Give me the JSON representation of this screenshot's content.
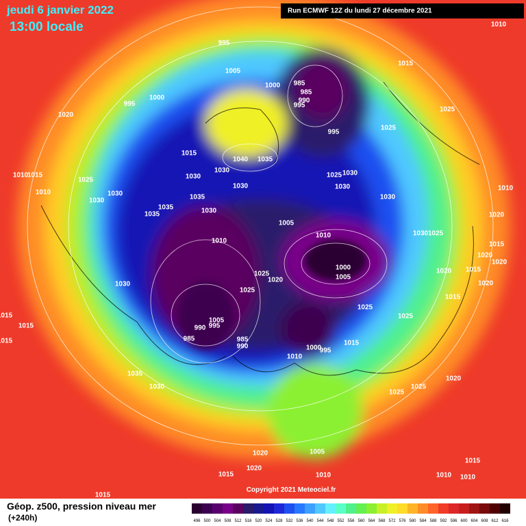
{
  "header": {
    "date": "jeudi 6 janvier 2022",
    "time": "13:00 locale",
    "run": "Run ECMWF 12Z du lundi 27 décembre 2021"
  },
  "map": {
    "isobar_labels": [
      "1010",
      "995",
      "1005",
      "1000",
      "985",
      "985",
      "990",
      "995",
      "1015",
      "995",
      "1000",
      "1020",
      "1025",
      "1025",
      "995",
      "1015",
      "1040",
      "1035",
      "1030",
      "1030",
      "1025",
      "1030",
      "1030",
      "1030",
      "1015",
      "1010",
      "1025",
      "1030",
      "1030",
      "1010",
      "1035",
      "1035",
      "1030",
      "1035",
      "1030",
      "1010",
      "1020",
      "1005",
      "1010",
      "1030",
      "1025",
      "1010",
      "1015",
      "1020",
      "1020",
      "1000",
      "1005",
      "1025",
      "1020",
      "1020",
      "1015",
      "1020",
      "1030",
      "1025",
      "1015",
      "1025",
      "1025",
      "1005",
      "990",
      "995",
      "985",
      "985",
      "990",
      "1000",
      "995",
      "1015",
      "1010",
      "1015",
      "1015",
      "1035",
      "1030",
      "1020",
      "1025",
      "1025",
      "1020",
      "1005",
      "1020",
      "1015",
      "1010",
      "1015",
      "1010",
      "1010",
      "1015",
      "1015"
    ],
    "copyright": "Copyright 2021 Meteociel.fr"
  },
  "legend": {
    "title": "Géop. z500, pression niveau mer",
    "lead": "(+240h)",
    "levels": [
      496,
      500,
      504,
      508,
      512,
      516,
      520,
      524,
      528,
      532,
      536,
      540,
      544,
      548,
      552,
      556,
      560,
      564,
      568,
      572,
      576,
      580,
      584,
      588,
      592,
      596,
      600,
      604,
      608,
      612,
      616
    ],
    "colors": [
      "#2a0030",
      "#3c0050",
      "#5a006e",
      "#780088",
      "#5a0060",
      "#2a1a6a",
      "#1a1a90",
      "#1414b4",
      "#1e28d8",
      "#1e50f0",
      "#2878ff",
      "#3ca0ff",
      "#50c8ff",
      "#64f0ff",
      "#5affc8",
      "#50f08c",
      "#64f050",
      "#8cf032",
      "#c8f028",
      "#f0f028",
      "#ffdc28",
      "#ffb428",
      "#ff8c28",
      "#ff6428",
      "#f03c28",
      "#dc2828",
      "#c81e1e",
      "#a01414",
      "#780a0a",
      "#500000",
      "#200000"
    ]
  }
}
